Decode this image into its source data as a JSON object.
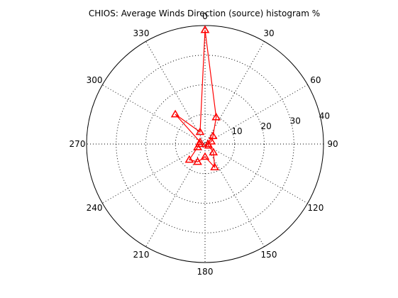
{
  "chart_data": {
    "type": "polar",
    "title": "CHIOS: Average Winds Direction (source) histogram %",
    "theta_direction": "clockwise",
    "theta_zero": "top",
    "theta_ticks": [
      "0",
      "30",
      "60",
      "90",
      "120",
      "150",
      "180",
      "210",
      "240",
      "270",
      "300",
      "330"
    ],
    "r_ticks": [
      "10",
      "20",
      "30",
      "40"
    ],
    "r_lim": [
      0,
      40
    ],
    "grid": true,
    "series": [
      {
        "marker": "triangle",
        "color": "#ff0000",
        "theta": [
          0,
          22.5,
          45,
          67.5,
          90,
          112.5,
          135,
          157.5,
          180,
          202.5,
          225,
          247.5,
          270,
          292.5,
          315,
          337.5,
          0
        ],
        "r": [
          38.5,
          9.8,
          3.8,
          2.3,
          1.0,
          1.3,
          4.0,
          8.5,
          4.3,
          6.5,
          7.5,
          2.7,
          1.8,
          1.8,
          14.2,
          4.4,
          38.5
        ]
      }
    ]
  }
}
